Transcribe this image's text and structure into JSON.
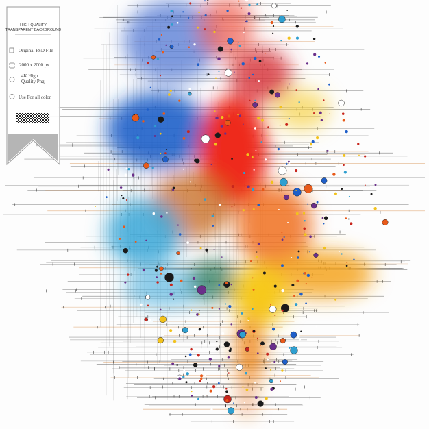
{
  "badge": {
    "title": [
      "HIGH QUALITY",
      "TRANSPARENT BACKGROUND"
    ],
    "features": [
      "Original PSD File",
      "2000 x 2000 px",
      "4K High Quality Png",
      "Use For all color"
    ]
  }
}
